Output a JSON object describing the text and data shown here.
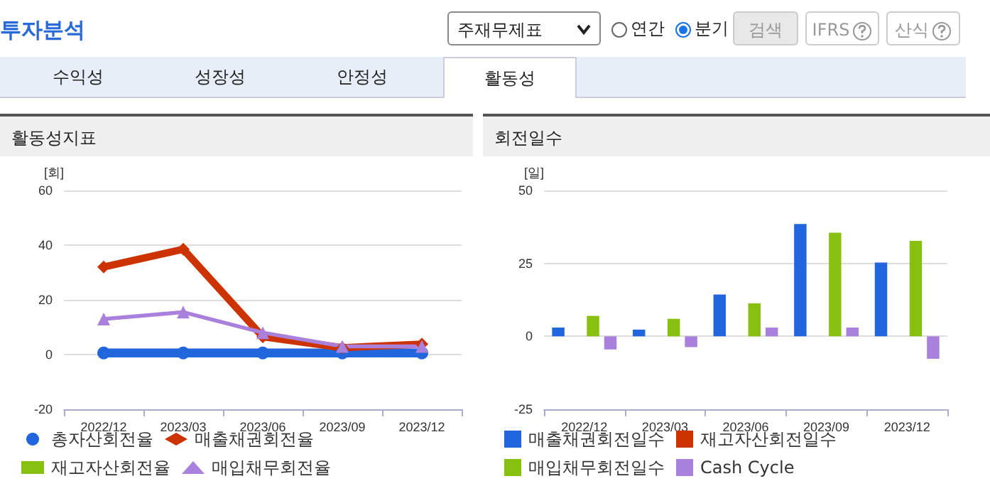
{
  "chart_data": [
    {
      "type": "other",
      "title": "투자분석",
      "annotations": [
        "주재무제표",
        "연간",
        "분기",
        "검색",
        "IFRS",
        "산식",
        "수익성",
        "성장성",
        "안정성",
        "활동성"
      ]
    },
    {
      "type": "line",
      "title": "활동성지표",
      "ylabel": "[회]",
      "categories": [
        "2022/12",
        "2023/03",
        "2023/06",
        "2023/09",
        "2023/12"
      ],
      "ylim": [
        -20,
        60
      ],
      "yticks": [
        -20,
        0,
        20,
        40,
        60
      ],
      "grid": "y",
      "legend": "bottom",
      "series": [
        {
          "name": "총자산회전율",
          "color": "#2266dd",
          "marker": "circle",
          "values": [
            0.6,
            0.6,
            0.6,
            0.6,
            0.6
          ]
        },
        {
          "name": "매출채권회전율",
          "color": "#cc3300",
          "marker": "diamond",
          "values": [
            32,
            38.5,
            6.5,
            2.5,
            3.8
          ]
        },
        {
          "name": "재고자산회전율",
          "color": "#88c010",
          "marker": "square",
          "values": [
            null,
            null,
            null,
            null,
            null
          ]
        },
        {
          "name": "매입채무회전율",
          "color": "#aa80dd",
          "marker": "triangle",
          "values": [
            13,
            15.5,
            8,
            3,
            3
          ]
        }
      ]
    },
    {
      "type": "bar",
      "title": "회전일수",
      "ylabel": "[일]",
      "categories": [
        "2022/12",
        "2023/03",
        "2023/06",
        "2023/09",
        "2023/12"
      ],
      "ylim": [
        -25,
        50
      ],
      "yticks": [
        -25,
        0,
        25,
        50
      ],
      "grid": "y",
      "legend": "bottom",
      "series": [
        {
          "name": "매출채권회전일수",
          "color": "#2266dd",
          "values": [
            3,
            2.3,
            14.3,
            38.5,
            25.3
          ]
        },
        {
          "name": "재고자산회전일수",
          "color": "#cc3300",
          "values": [
            null,
            null,
            null,
            null,
            null
          ]
        },
        {
          "name": "매입채무회전일수",
          "color": "#88c010",
          "values": [
            7,
            6,
            11.3,
            35.5,
            32.7
          ]
        },
        {
          "name": "Cash Cycle",
          "color": "#aa80dd",
          "values": [
            -4.5,
            -3.7,
            3,
            3,
            -7.7
          ]
        }
      ]
    }
  ]
}
